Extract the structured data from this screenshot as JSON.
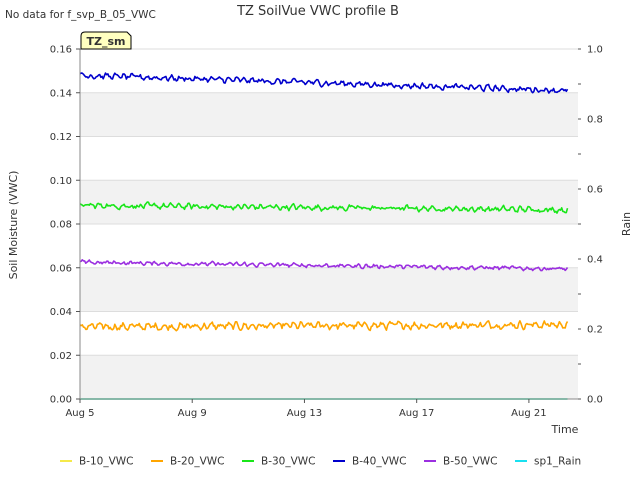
{
  "notice": "No data for f_svp_B_05_VWC",
  "badge": "TZ_sm",
  "chart_data": {
    "type": "line",
    "title": "TZ SoilVue VWC profile B",
    "xlabel": "Time",
    "ylabel": "Soil Moisture (VWC)",
    "y2label": "Rain",
    "xlim": [
      "2024-08-05",
      "2024-08-22T18:00"
    ],
    "ylim": [
      0,
      0.16
    ],
    "y2lim": [
      0,
      1.0
    ],
    "x_ticks": [
      "Aug 5",
      "Aug 9",
      "Aug 13",
      "Aug 17",
      "Aug 21"
    ],
    "x_tick_dates": [
      "2024-08-05",
      "2024-08-09",
      "2024-08-13",
      "2024-08-17",
      "2024-08-21"
    ],
    "y_ticks": [
      "0.00",
      "0.02",
      "0.04",
      "0.06",
      "0.08",
      "0.10",
      "0.12",
      "0.14",
      "0.16"
    ],
    "y2_ticks": [
      "0.0",
      "0.2",
      "0.4",
      "0.6",
      "0.8",
      "1.0"
    ],
    "grid": true,
    "banded_background": true,
    "legend_position": "bottom",
    "x_range": [
      "2024-08-05",
      "2024-08-22T09:00"
    ],
    "series": [
      {
        "name": "B-10_VWC",
        "color": "#f5e94a",
        "axis": "left",
        "start": 0.0,
        "end": 0.0,
        "noise": 0.0
      },
      {
        "name": "B-20_VWC",
        "color": "#ffa500",
        "axis": "left",
        "start": 0.033,
        "end": 0.034,
        "noise": 0.0014
      },
      {
        "name": "B-30_VWC",
        "color": "#19e619",
        "axis": "left",
        "start": 0.0885,
        "end": 0.0865,
        "noise": 0.0011
      },
      {
        "name": "B-40_VWC",
        "color": "#0000cc",
        "axis": "left",
        "start": 0.148,
        "end": 0.141,
        "noise": 0.0011
      },
      {
        "name": "B-50_VWC",
        "color": "#9b2fe0",
        "axis": "left",
        "start": 0.0625,
        "end": 0.0595,
        "noise": 0.0008
      },
      {
        "name": "sp1_Rain",
        "color": "#19e0f0",
        "axis": "right",
        "start": 0.0,
        "end": 0.0,
        "noise": 0.0
      }
    ]
  }
}
